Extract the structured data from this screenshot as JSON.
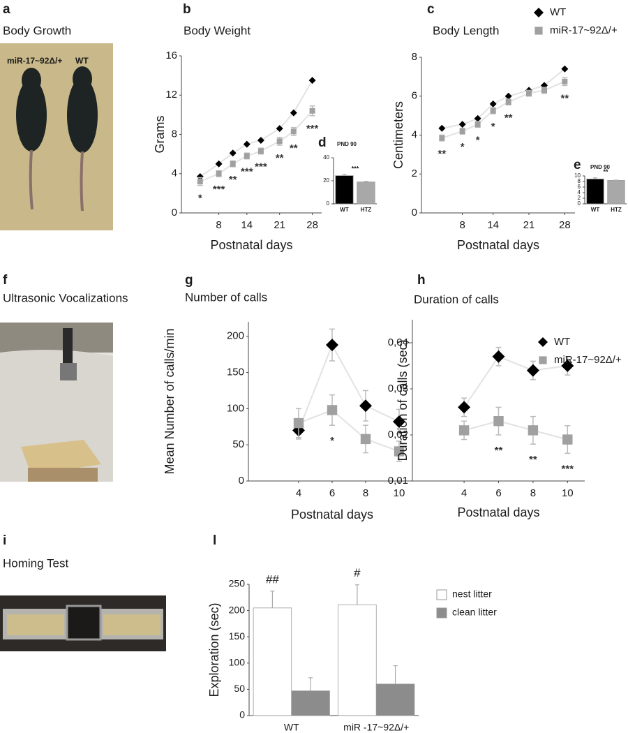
{
  "panels": [
    {
      "letter": "a",
      "title": "Body Growth",
      "labels": [
        "miR-17~92Δ/+",
        "WT"
      ]
    },
    {
      "letter": "f",
      "title": "Ultrasonic Vocalizations"
    },
    {
      "letter": "i",
      "title": "Homing Test"
    }
  ],
  "chart_data": [
    {
      "letter": "b",
      "type": "scatter",
      "title": "Body Weight",
      "x_label": "Postnatal days",
      "y_label": "Grams",
      "x": [
        4,
        8,
        11,
        14,
        17,
        21,
        24,
        28
      ],
      "xlim": [
        0,
        30
      ],
      "xticks": [
        8,
        14,
        21,
        28
      ],
      "ylim": [
        0,
        16
      ],
      "yticks": [
        0,
        4,
        8,
        12,
        16
      ],
      "series": [
        {
          "color": "#000000",
          "marker": "diamond",
          "values": [
            3.7,
            5.0,
            6.1,
            7.0,
            7.4,
            8.6,
            10.2,
            13.5
          ]
        },
        {
          "color": "#a0a0a0",
          "marker": "square",
          "values": [
            3.2,
            4.0,
            5.0,
            5.8,
            6.3,
            7.3,
            8.3,
            10.4
          ],
          "errors": [
            0.4,
            0.3,
            0.3,
            0.3,
            0.3,
            0.4,
            0.4,
            0.5
          ]
        }
      ],
      "annotations": [
        "*",
        "***",
        "**",
        "***",
        "***",
        "**",
        "**",
        "***"
      ]
    },
    {
      "letter": "d",
      "type": "bar",
      "title": "PND 90",
      "categories": [
        "WT",
        "HTZ"
      ],
      "values": [
        24.5,
        19
      ],
      "errors": [
        1,
        0.5
      ],
      "colors": [
        "#000000",
        "#a8a8a8"
      ],
      "ylim": [
        0,
        40
      ],
      "yticks": [
        0,
        20,
        40
      ],
      "annotation": "***"
    },
    {
      "letter": "c",
      "type": "scatter",
      "title": "Body Length",
      "x_label": "Postnatal days",
      "y_label": "Centimeters",
      "x": [
        4,
        8,
        11,
        14,
        17,
        21,
        24,
        28
      ],
      "xlim": [
        0,
        30
      ],
      "xticks": [
        8,
        14,
        21,
        28
      ],
      "ylim": [
        0,
        8
      ],
      "yticks": [
        0,
        2,
        4,
        6,
        8
      ],
      "series": [
        {
          "name": "WT",
          "color": "#000000",
          "marker": "diamond",
          "values": [
            4.35,
            4.55,
            4.85,
            5.6,
            6.0,
            6.3,
            6.55,
            7.4
          ]
        },
        {
          "name": "miR-17~92Δ/+",
          "color": "#a0a0a0",
          "marker": "square",
          "values": [
            3.85,
            4.2,
            4.55,
            5.25,
            5.7,
            6.15,
            6.3,
            6.75
          ],
          "errors": [
            0.15,
            0.15,
            0.15,
            0.15,
            0.15,
            0.15,
            0.15,
            0.2
          ]
        }
      ],
      "annotations": [
        "**",
        "*",
        "*",
        "*",
        "**",
        null,
        null,
        "**"
      ]
    },
    {
      "letter": "e",
      "type": "bar",
      "title": "PND 90",
      "categories": [
        "WT",
        "HTZ"
      ],
      "values": [
        8.9,
        8.4
      ],
      "errors": [
        0.4,
        0.1
      ],
      "colors": [
        "#000000",
        "#a8a8a8"
      ],
      "ylim": [
        0,
        10
      ],
      "yticks": [
        0,
        2,
        4,
        6,
        8,
        10
      ],
      "annotation": "**"
    },
    {
      "letter": "g",
      "type": "scatter",
      "title": "Number of calls",
      "x_label": "Postnatal days",
      "y_label": "Mean Number of calls/min",
      "x": [
        4,
        6,
        8,
        10
      ],
      "xlim": [
        1,
        11
      ],
      "xticks": [
        4,
        6,
        8,
        10
      ],
      "ylim": [
        0,
        220
      ],
      "yticks": [
        0,
        50,
        100,
        150,
        200
      ],
      "series": [
        {
          "color": "#000000",
          "marker": "diamond",
          "values": [
            70,
            188,
            104,
            82
          ],
          "errors": [
            12,
            22,
            21,
            17
          ]
        },
        {
          "color": "#a0a0a0",
          "marker": "square",
          "values": [
            80,
            98,
            58,
            41
          ],
          "errors": [
            20,
            21,
            19,
            14
          ]
        }
      ],
      "annotations": [
        null,
        "*",
        null,
        null
      ]
    },
    {
      "letter": "h",
      "type": "scatter",
      "title": "Duration of calls",
      "x_label": "Postnatal days",
      "y_label": "Duration of calls (sec)",
      "x": [
        4,
        6,
        8,
        10
      ],
      "xlim": [
        1,
        11
      ],
      "xticks": [
        4,
        6,
        8,
        10
      ],
      "ylim": [
        0.01,
        0.045
      ],
      "yticks": [
        {
          "value": 0.01,
          "label": "0,01"
        },
        {
          "value": 0.02,
          "label": "0,02"
        },
        {
          "value": 0.03,
          "label": "0,03"
        },
        {
          "value": 0.04,
          "label": "0,04"
        }
      ],
      "series": [
        {
          "name": "WT",
          "color": "#000000",
          "marker": "diamond",
          "values": [
            0.026,
            0.037,
            0.034,
            0.035
          ],
          "errors": [
            0.002,
            0.002,
            0.002,
            0.002
          ]
        },
        {
          "name": "miR-17~92Δ/+",
          "color": "#a0a0a0",
          "marker": "square",
          "values": [
            0.021,
            0.023,
            0.021,
            0.019
          ],
          "errors": [
            0.002,
            0.003,
            0.003,
            0.003
          ]
        }
      ],
      "annotations": [
        null,
        "**",
        "**",
        "***"
      ]
    },
    {
      "letter": "l",
      "type": "bar",
      "y_label": "Exploration (sec)",
      "categories": [
        "WT",
        "miR -17~92Δ/+"
      ],
      "series": [
        {
          "name": "nest litter",
          "color": "#ffffff",
          "values": [
            205,
            211
          ],
          "errors": [
            32,
            38
          ]
        },
        {
          "name": "clean litter",
          "color": "#8c8c8c",
          "values": [
            47,
            60
          ],
          "errors": [
            25,
            35
          ]
        }
      ],
      "ylim": [
        0,
        250
      ],
      "yticks": [
        0,
        50,
        100,
        150,
        200,
        250
      ],
      "annotations": [
        "##",
        "#"
      ]
    }
  ]
}
